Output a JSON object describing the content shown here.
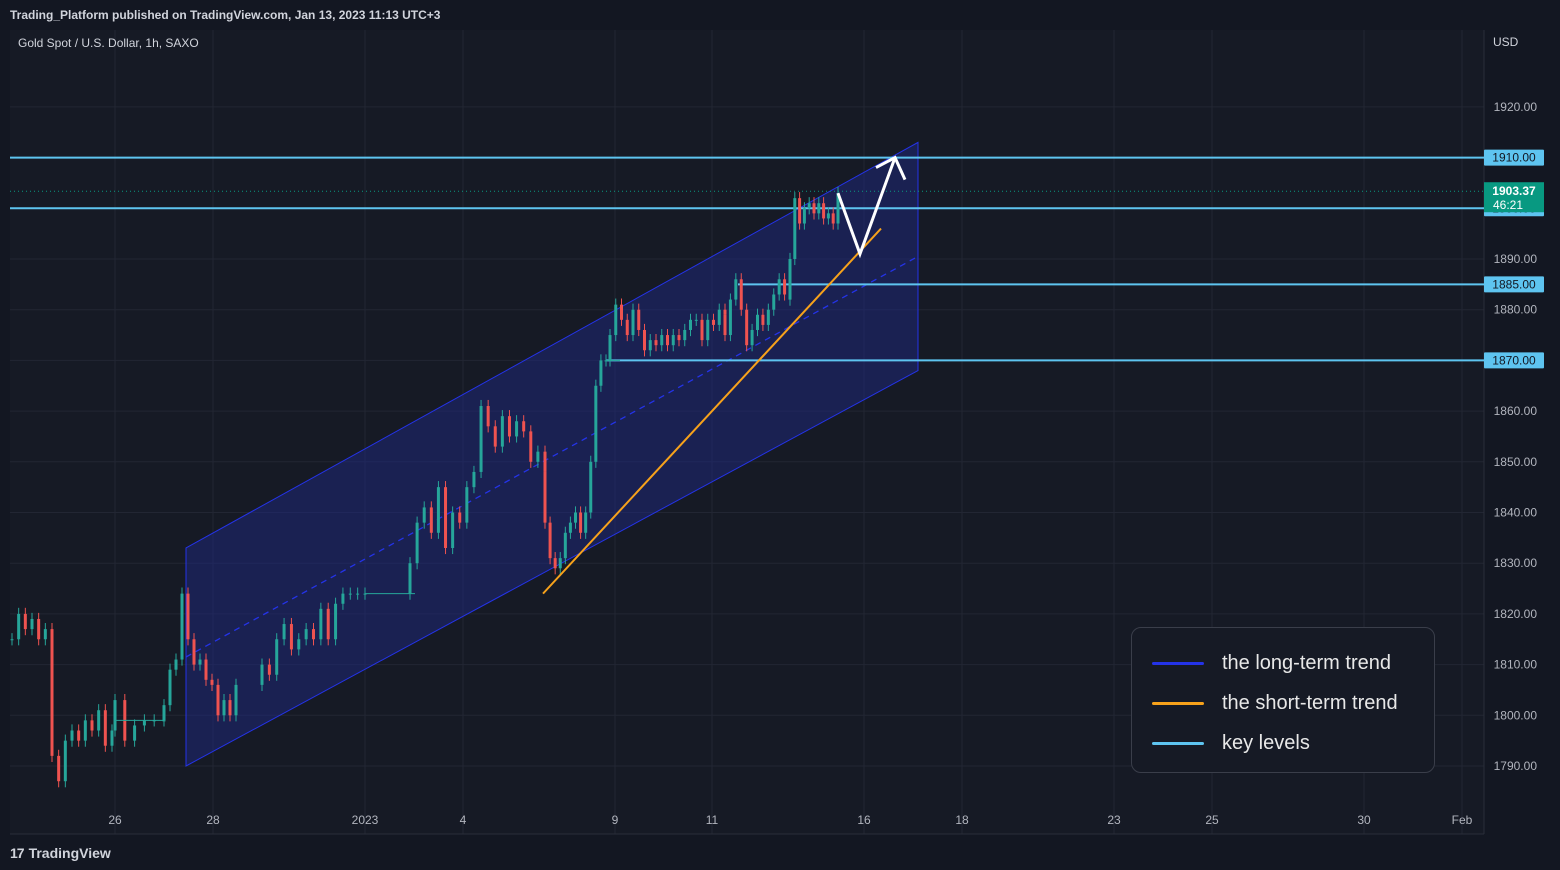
{
  "header": {
    "publish_text": "Trading_Platform published on TradingView.com, Jan 13, 2023 11:13 UTC+3"
  },
  "symbol": {
    "title": "Gold Spot / U.S. Dollar, 1h, SAXO"
  },
  "footer": {
    "brand": "TradingView",
    "logo_icon": "tradingview-logo-icon"
  },
  "colors": {
    "long_term": "#2433e8",
    "short_term": "#f7a21b",
    "key_level": "#5ec4f0",
    "up": "#26a69a",
    "down": "#ef5350",
    "price_tag": "#089981",
    "channel_fill": "#1f2a8a"
  },
  "chart_data": {
    "type": "candlestick",
    "currency": "USD",
    "y_ticks": [
      "1920.00",
      "1910.00",
      "1900.00",
      "1890.00",
      "1880.00",
      "1870.00",
      "1860.00",
      "1850.00",
      "1840.00",
      "1830.00",
      "1820.00",
      "1810.00",
      "1800.00",
      "1790.00"
    ],
    "x_ticks": [
      "26",
      "28",
      "2023",
      "4",
      "9",
      "11",
      "16",
      "18",
      "23",
      "25",
      "30",
      "Feb"
    ],
    "ylim": [
      1785,
      1930
    ],
    "key_levels": [
      {
        "price": 1910.0,
        "label": "1910.00"
      },
      {
        "price": 1900.0,
        "label": "1900.00"
      },
      {
        "price": 1885.0,
        "label": "1885.00"
      },
      {
        "price": 1870.0,
        "label": "1870.00"
      }
    ],
    "current_price": {
      "value": "1903.37",
      "countdown": "46:21"
    },
    "path_points": [
      [
        "Dec 23",
        1815
      ],
      [
        "Dec 23",
        1820
      ],
      [
        "Dec 23",
        1817
      ],
      [
        "Dec 23",
        1819
      ],
      [
        "Dec 23",
        1815
      ],
      [
        "Dec 23",
        1817
      ],
      [
        "Dec 23",
        1792
      ],
      [
        "Dec 23",
        1787
      ],
      [
        "Dec 23",
        1795
      ],
      [
        "Dec 23",
        1797
      ],
      [
        "Dec 23",
        1795
      ],
      [
        "Dec 23",
        1799
      ],
      [
        "Dec 23",
        1797
      ],
      [
        "Dec 23",
        1801
      ],
      [
        "Dec 23",
        1794
      ],
      [
        "Dec 23",
        1797
      ],
      [
        "Dec 26",
        1803
      ],
      [
        "Dec 26",
        1795
      ],
      [
        "Dec 26",
        1798
      ],
      [
        "Dec 26",
        1799
      ],
      [
        "Dec 26",
        1799
      ],
      [
        "Dec 26",
        1799
      ],
      [
        "Dec 27",
        1802
      ],
      [
        "Dec 27",
        1809
      ],
      [
        "Dec 27",
        1811
      ],
      [
        "Dec 27",
        1824
      ],
      [
        "Dec 27",
        1815
      ],
      [
        "Dec 27",
        1810
      ],
      [
        "Dec 27",
        1811
      ],
      [
        "Dec 27",
        1807
      ],
      [
        "Dec 27",
        1806
      ],
      [
        "Dec 27",
        1800
      ],
      [
        "Dec 27",
        1803
      ],
      [
        "Dec 27",
        1800
      ],
      [
        "Dec 27",
        1806
      ],
      [
        "Dec 29",
        1810
      ],
      [
        "Dec 29",
        1808
      ],
      [
        "Dec 29",
        1815
      ],
      [
        "Dec 29",
        1818
      ],
      [
        "Dec 29",
        1813
      ],
      [
        "Dec 29",
        1815
      ],
      [
        "Dec 29",
        1817
      ],
      [
        "Dec 29",
        1815
      ],
      [
        "Dec 29",
        1821
      ],
      [
        "Dec 29",
        1815
      ],
      [
        "Dec 29",
        1822
      ],
      [
        "Dec 29",
        1824
      ],
      [
        "Dec 29",
        1824
      ],
      [
        "Dec 29",
        1824
      ],
      [
        "Dec 29",
        1824
      ],
      [
        "Jan 3",
        1830
      ],
      [
        "Jan 3",
        1838
      ],
      [
        "Jan 3",
        1841
      ],
      [
        "Jan 3",
        1836
      ],
      [
        "Jan 3",
        1845
      ],
      [
        "Jan 3",
        1833
      ],
      [
        "Jan 3",
        1840
      ],
      [
        "Jan 3",
        1838
      ],
      [
        "Jan 3",
        1845
      ],
      [
        "Jan 3",
        1848
      ],
      [
        "Jan 3",
        1861
      ],
      [
        "Jan 3",
        1857
      ],
      [
        "Jan 3",
        1853
      ],
      [
        "Jan 3",
        1859
      ],
      [
        "Jan 3",
        1855
      ],
      [
        "Jan 3",
        1858
      ],
      [
        "Jan 3",
        1856
      ],
      [
        "Jan 3",
        1850
      ],
      [
        "Jan 3",
        1852
      ],
      [
        "Jan 3",
        1848
      ],
      [
        "Jan 6",
        1838
      ],
      [
        "Jan 6",
        1831
      ],
      [
        "Jan 6",
        1829
      ],
      [
        "Jan 6",
        1831
      ],
      [
        "Jan 6",
        1836
      ],
      [
        "Jan 6",
        1838
      ],
      [
        "Jan 6",
        1840
      ],
      [
        "Jan 6",
        1836
      ],
      [
        "Jan 6",
        1840
      ],
      [
        "Jan 6",
        1850
      ],
      [
        "Jan 6",
        1865
      ],
      [
        "Jan 6",
        1870
      ],
      [
        "Jan 6",
        1870
      ],
      [
        "Jan 9",
        1875
      ],
      [
        "Jan 9",
        1881
      ],
      [
        "Jan 9",
        1878
      ],
      [
        "Jan 9",
        1875
      ],
      [
        "Jan 9",
        1880
      ],
      [
        "Jan 9",
        1876
      ],
      [
        "Jan 9",
        1872
      ],
      [
        "Jan 9",
        1874
      ],
      [
        "Jan 9",
        1873
      ],
      [
        "Jan 9",
        1875
      ],
      [
        "Jan 9",
        1873
      ],
      [
        "Jan 9",
        1875
      ],
      [
        "Jan 9",
        1874
      ],
      [
        "Jan 9",
        1876
      ],
      [
        "Jan 9",
        1878
      ],
      [
        "Jan 9",
        1878
      ],
      [
        "Jan 9",
        1874
      ],
      [
        "Jan 9",
        1878
      ],
      [
        "Jan 9",
        1877
      ],
      [
        "Jan 9",
        1880
      ],
      [
        "Jan 9",
        1879
      ],
      [
        "Jan 11",
        1875
      ],
      [
        "Jan 11",
        1882
      ],
      [
        "Jan 11",
        1886
      ],
      [
        "Jan 11",
        1880
      ],
      [
        "Jan 11",
        1873
      ],
      [
        "Jan 11",
        1876
      ],
      [
        "Jan 11",
        1879
      ],
      [
        "Jan 11",
        1877
      ],
      [
        "Jan 11",
        1880
      ],
      [
        "Jan 11",
        1883
      ],
      [
        "Jan 11",
        1886
      ],
      [
        "Jan 11",
        1883
      ],
      [
        "Jan 11",
        1882
      ],
      [
        "Jan 12",
        1890
      ],
      [
        "Jan 12",
        1902
      ],
      [
        "Jan 12",
        1897
      ],
      [
        "Jan 12",
        1900
      ],
      [
        "Jan 12",
        1901
      ],
      [
        "Jan 12",
        1899
      ],
      [
        "Jan 12",
        1901
      ],
      [
        "Jan 12",
        1898
      ],
      [
        "Jan 12",
        1899
      ],
      [
        "Jan 12",
        1897
      ],
      [
        "Jan 12",
        1903
      ]
    ],
    "long_term_channel": {
      "start": [
        "Dec 27",
        1833,
        1790
      ],
      "end": [
        "Jan 16",
        1913,
        1868
      ],
      "midline_dashed": true
    },
    "short_term_trendline": {
      "start": [
        "Jan 6",
        1824
      ],
      "end": [
        "Jan 16",
        1896
      ]
    },
    "projection_arrow": [
      [
        "Jan 13",
        1903
      ],
      [
        "Jan 13",
        1891
      ],
      [
        "Jan 14",
        1910
      ]
    ]
  },
  "legend": {
    "items": [
      {
        "label": "the long-term trend",
        "color": "#2433e8"
      },
      {
        "label": "the short-term trend",
        "color": "#f7a21b"
      },
      {
        "label": "key levels",
        "color": "#5ec4f0"
      }
    ]
  }
}
